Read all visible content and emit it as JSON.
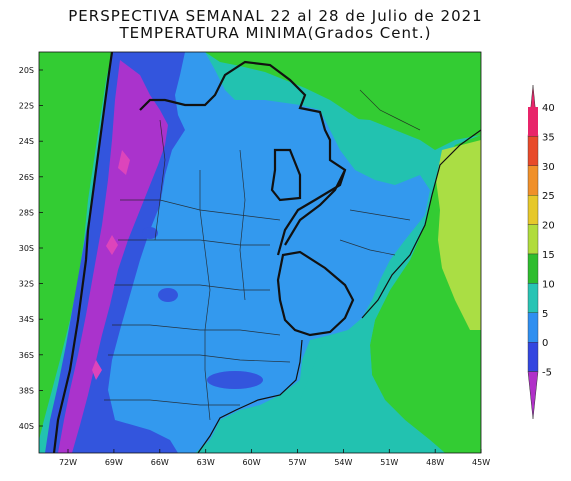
{
  "title": {
    "line1": "PERSPECTIVA SEMANAL  22 al 28 de Julio de 2021",
    "line2": "TEMPERATURA MINIMA(Grados Cent.)"
  },
  "lat_ticks": [
    "20S",
    "22S",
    "24S",
    "26S",
    "28S",
    "30S",
    "32S",
    "34S",
    "36S",
    "38S",
    "40S"
  ],
  "lon_ticks": [
    "72W",
    "69W",
    "66W",
    "63W",
    "60W",
    "57W",
    "54W",
    "51W",
    "48W",
    "45W"
  ],
  "colorbar": {
    "labels": [
      "40",
      "35",
      "30",
      "25",
      "20",
      "15",
      "10",
      "5",
      "0",
      "-5"
    ],
    "colors": [
      "#e8256a",
      "#e84a2a",
      "#f0902a",
      "#e6c82a",
      "#b0dc3c",
      "#2ebd2e",
      "#28c4b4",
      "#2f8ff0",
      "#3346e0",
      "#b030c8"
    ]
  },
  "map_colors": {
    "green": "#33cc33",
    "lightgreen": "#aade44",
    "teal": "#22c2b0",
    "blue": "#3399ee",
    "darkblue": "#3355dd",
    "purple": "#aa33cc",
    "pink": "#dd44bb",
    "border": "#111111"
  }
}
